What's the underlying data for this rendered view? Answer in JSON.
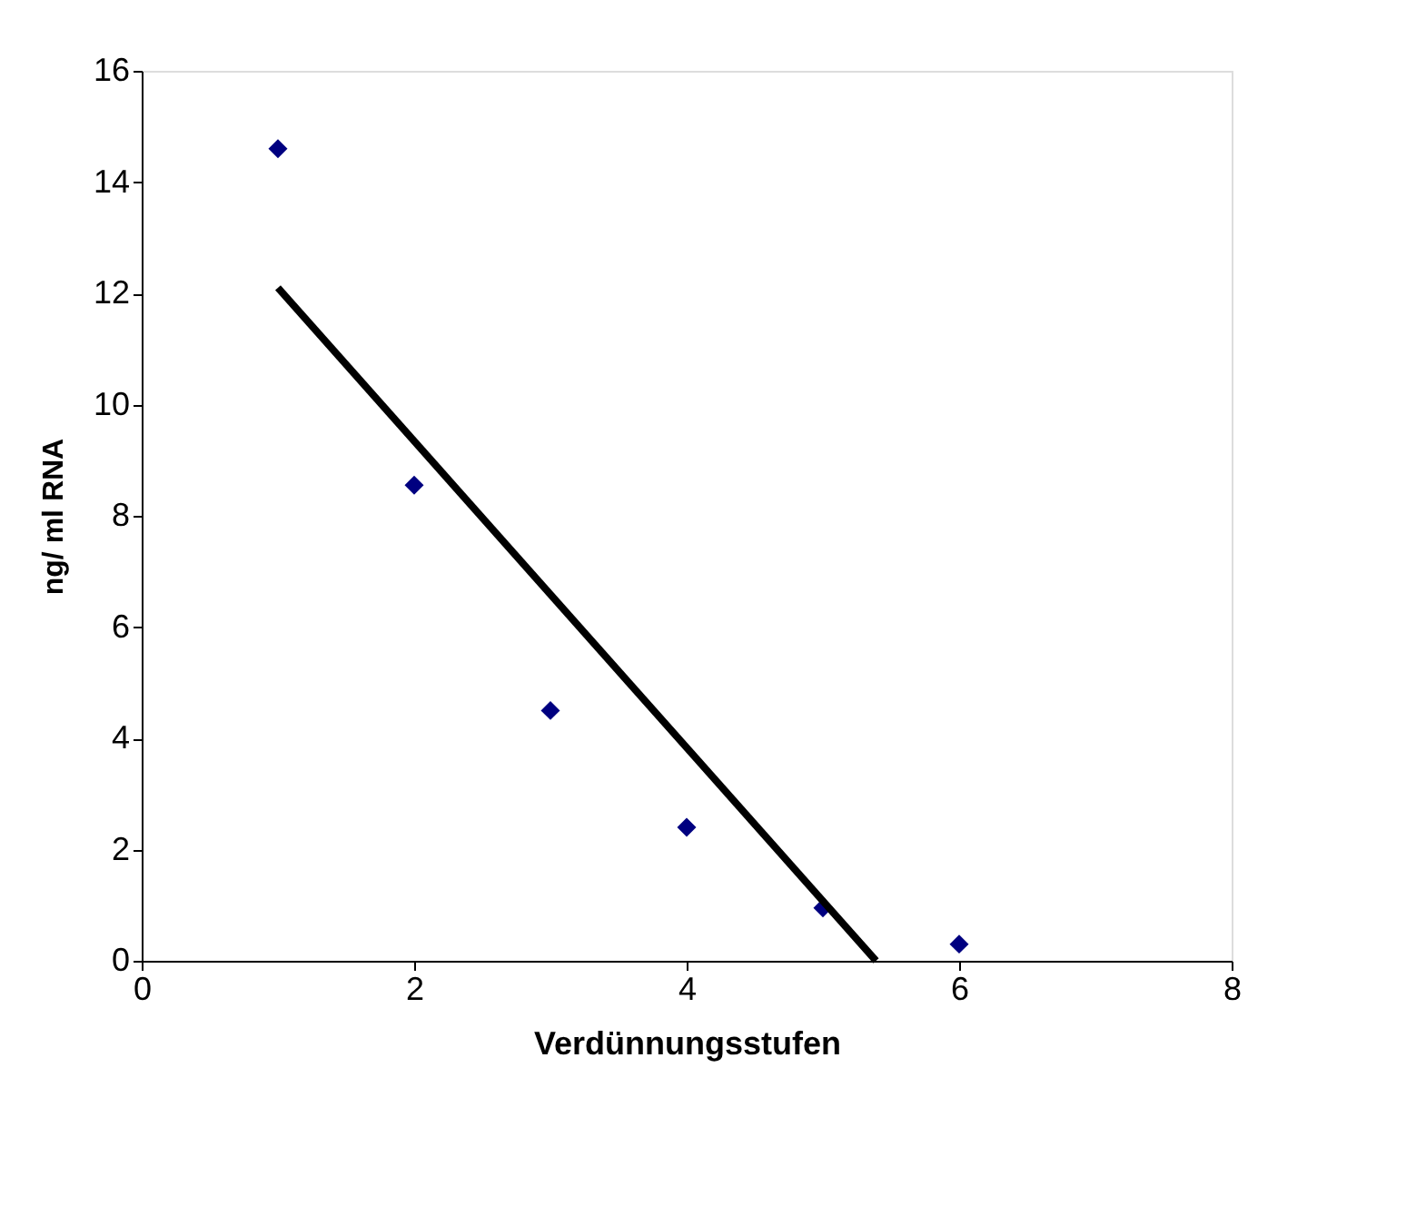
{
  "chart_data": {
    "type": "scatter",
    "xlabel": "Verdünnungsstufen",
    "ylabel": "ng/ ml RNA",
    "x": [
      1,
      2,
      3,
      4,
      5,
      6
    ],
    "series": [
      {
        "color": "#000080",
        "values": [
          14.6,
          8.55,
          4.5,
          2.4,
          0.95,
          0.3
        ],
        "marker": "diamond"
      },
      {
        "type": "line",
        "color": "#000000",
        "x": [
          1,
          5.39
        ],
        "values": [
          12.1,
          0
        ],
        "marker": "none",
        "line_style": "solid"
      }
    ],
    "xlim": [
      0,
      8
    ],
    "xticks": [
      0,
      2,
      4,
      6,
      8
    ],
    "ylim": [
      0,
      16
    ],
    "yticks": [
      0,
      2,
      4,
      6,
      8,
      10,
      12,
      14,
      16
    ],
    "grid": false,
    "legend": false
  }
}
